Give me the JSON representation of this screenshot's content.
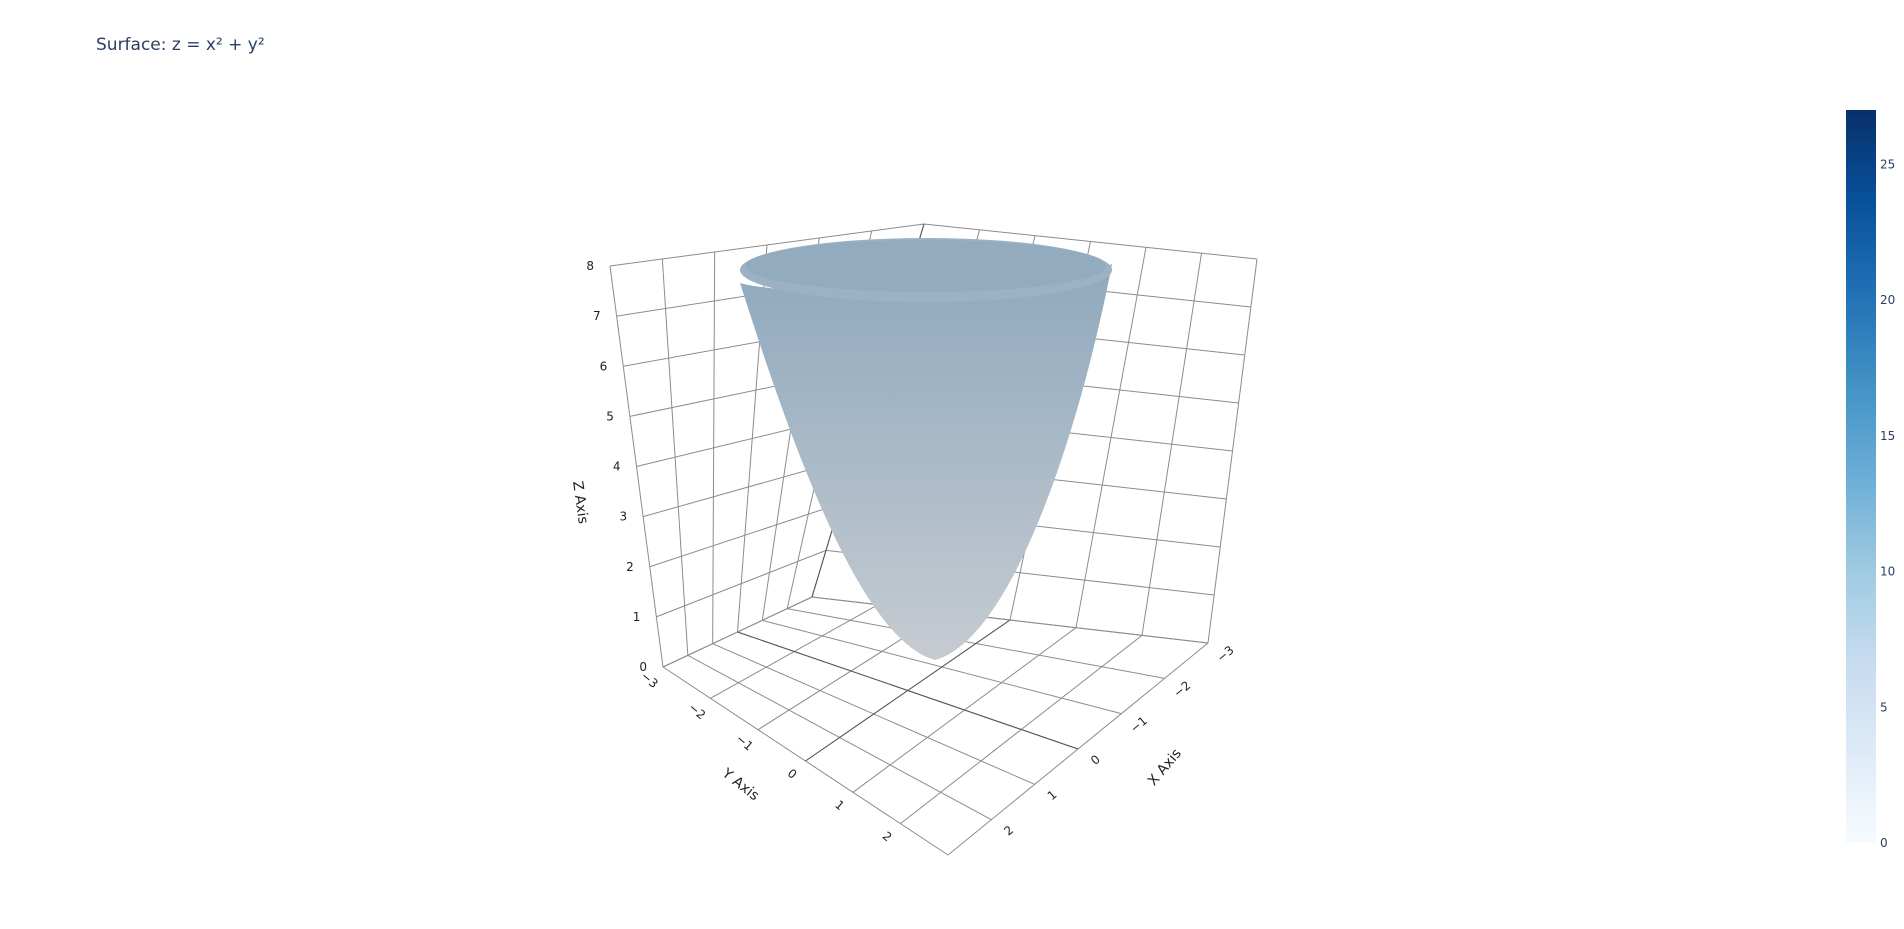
{
  "chart_data": {
    "type": "surface",
    "title": "Surface: z = x² + y²",
    "equation": "z = x² + y²",
    "xlabel": "X Axis",
    "ylabel": "Y Axis",
    "zlabel": "Z Axis",
    "x_ticks": [
      "−3",
      "−2",
      "−1",
      "0",
      "1",
      "2"
    ],
    "y_ticks": [
      "−3",
      "−2",
      "−1",
      "0",
      "1",
      "2"
    ],
    "z_ticks": [
      "0",
      "1",
      "2",
      "3",
      "4",
      "5",
      "6",
      "7",
      "8"
    ],
    "xlim": [
      -3,
      3
    ],
    "ylim": [
      -3,
      3
    ],
    "zlim": [
      0,
      8
    ],
    "colorscale": "Blues",
    "colorbar_range": [
      0,
      27
    ],
    "colorbar_ticks": [
      "0",
      "5",
      "10",
      "15",
      "20",
      "25"
    ],
    "surface_colors": {
      "top": "#8fa9be",
      "bottom": "#c6cbd1"
    },
    "grid": true
  }
}
